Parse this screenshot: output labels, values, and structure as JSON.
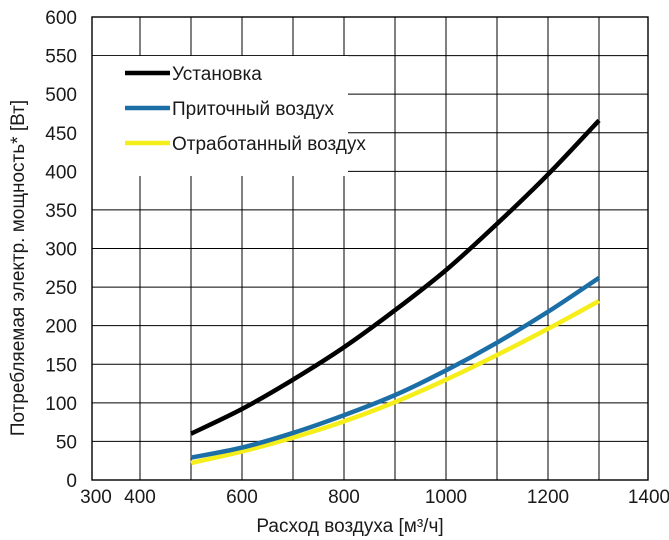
{
  "chart_data": {
    "type": "line",
    "title": "",
    "xlabel": "Расход воздуха [м³/ч]",
    "ylabel": "Потребляемая электр. мощность* [Вт]",
    "xlim": [
      300,
      1400
    ],
    "ylim": [
      0,
      600
    ],
    "x_ticks": [
      300,
      400,
      600,
      800,
      1000,
      1200,
      1400
    ],
    "y_ticks": [
      0,
      50,
      100,
      150,
      200,
      250,
      300,
      350,
      400,
      450,
      500,
      550,
      600
    ],
    "grid": true,
    "legend_position": "top-left",
    "series": [
      {
        "name": "Установка",
        "color": "#000000",
        "x": [
          500,
          600,
          700,
          800,
          900,
          1000,
          1100,
          1200,
          1300
        ],
        "y": [
          60,
          92,
          130,
          172,
          220,
          272,
          332,
          396,
          466
        ]
      },
      {
        "name": "Приточный воздух",
        "color": "#1c6fa6",
        "x": [
          500,
          600,
          700,
          800,
          900,
          1000,
          1100,
          1200,
          1300
        ],
        "y": [
          29,
          42,
          61,
          84,
          110,
          142,
          178,
          218,
          262
        ]
      },
      {
        "name": "Отработанный воздух",
        "color": "#f5ee1a",
        "x": [
          500,
          600,
          700,
          800,
          900,
          1000,
          1100,
          1200,
          1300
        ],
        "y": [
          22,
          37,
          55,
          76,
          101,
          130,
          162,
          196,
          232
        ]
      }
    ]
  }
}
